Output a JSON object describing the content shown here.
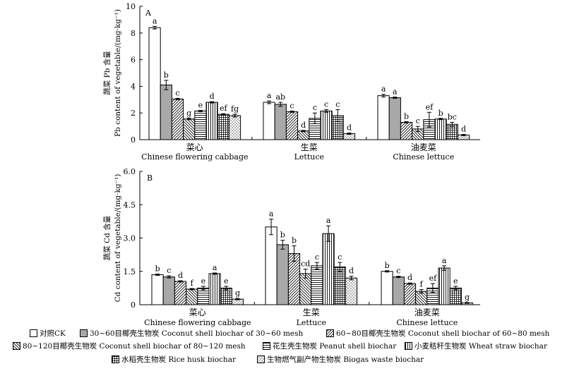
{
  "chart_data": [
    {
      "type": "bar",
      "panel_label": "A",
      "ylabel_cn": "蔬菜 Pb 含量",
      "ylabel_en": "Pb content of vegetable/(mg·kg⁻¹)",
      "ylim": [
        0,
        10
      ],
      "yticks": [
        0,
        2,
        4,
        6,
        8,
        10
      ],
      "categories": [
        {
          "cn": "菜心",
          "en": "Chinese flowering cabbage"
        },
        {
          "cn": "生菜",
          "en": "Lettuce"
        },
        {
          "cn": "油麦菜",
          "en": "Chinese lettuce"
        }
      ],
      "series": [
        {
          "name": "对照CK",
          "values": [
            8.4,
            2.8,
            3.3
          ],
          "errors": [
            0.1,
            0.1,
            0.1
          ],
          "letters": [
            "a",
            "a",
            "a"
          ]
        },
        {
          "name": "30~60目椰壳生物炭 Coconut shell biochar of 30~60 mesh",
          "values": [
            4.1,
            2.65,
            3.15
          ],
          "errors": [
            0.35,
            0.15,
            0.05
          ],
          "letters": [
            "b",
            "ab",
            "a"
          ]
        },
        {
          "name": "60~80目椰壳生物炭 Coconut shell biochar of 60~80 mesh",
          "values": [
            3.05,
            2.1,
            1.3
          ],
          "errors": [
            0.05,
            0.05,
            0.05
          ],
          "letters": [
            "c",
            "c",
            "b"
          ]
        },
        {
          "name": "80~120目椰壳生物炭 Coconut shell biochar of 80~120 mesh",
          "values": [
            1.55,
            0.65,
            0.8
          ],
          "errors": [
            0.05,
            0.05,
            0.2
          ],
          "letters": [
            "g",
            "d",
            "c"
          ]
        },
        {
          "name": "花生壳生物炭 Peanut shell biochar",
          "values": [
            2.15,
            1.6,
            1.5
          ],
          "errors": [
            0.05,
            0.4,
            0.55
          ],
          "letters": [
            "e",
            "c",
            "ef"
          ]
        },
        {
          "name": "小麦秸秆生物炭 Wheat straw biochar",
          "values": [
            2.8,
            2.15,
            1.55
          ],
          "errors": [
            0.05,
            0.1,
            0.05
          ],
          "letters": [
            "d",
            "c",
            "b"
          ]
        },
        {
          "name": "水稻壳生物炭 Rice husk biochar",
          "values": [
            1.9,
            1.8,
            1.15
          ],
          "errors": [
            0.05,
            0.45,
            0.15
          ],
          "letters": [
            "ef",
            "c",
            "bc"
          ]
        },
        {
          "name": "生物燃气副产物生物炭 Biogas waste biochar",
          "values": [
            1.8,
            0.45,
            0.35
          ],
          "errors": [
            0.1,
            0.05,
            0.05
          ],
          "letters": [
            "fg",
            "d",
            "d"
          ]
        }
      ]
    },
    {
      "type": "bar",
      "panel_label": "B",
      "ylabel_cn": "蔬菜 Cd 含量",
      "ylabel_en": "Cd content of vegetable/(mg·kg⁻¹)",
      "ylim": [
        0,
        6
      ],
      "yticks": [
        "0",
        "1.5",
        "3.0",
        "4.5",
        "6.0"
      ],
      "ytick_values": [
        0,
        1.5,
        3.0,
        4.5,
        6.0
      ],
      "categories": [
        {
          "cn": "菜心",
          "en": "Chinese flowering cabbage"
        },
        {
          "cn": "生菜",
          "en": "Lettuce"
        },
        {
          "cn": "油麦菜",
          "en": "Chinese lettuce"
        }
      ],
      "series": [
        {
          "name": "对照CK",
          "values": [
            1.35,
            3.5,
            1.5
          ],
          "errors": [
            0.03,
            0.35,
            0.03
          ],
          "letters": [
            "b",
            "a",
            "b"
          ]
        },
        {
          "name": "30~60目椰壳生物炭 Coconut shell biochar of 30~60 mesh",
          "values": [
            1.25,
            2.7,
            1.25
          ],
          "errors": [
            0.05,
            0.2,
            0.03
          ],
          "letters": [
            "c",
            "b",
            "c"
          ]
        },
        {
          "name": "60~80目椰壳生物炭 Coconut shell biochar of 60~80 mesh",
          "values": [
            1.05,
            2.3,
            0.95
          ],
          "errors": [
            0.03,
            0.35,
            0.03
          ],
          "letters": [
            "d",
            "b",
            "d"
          ]
        },
        {
          "name": "80~120目椰壳生物炭 Coconut shell biochar of 80~120 mesh",
          "values": [
            0.7,
            1.4,
            0.6
          ],
          "errors": [
            0.03,
            0.2,
            0.08
          ],
          "letters": [
            "f",
            "cd",
            "f"
          ]
        },
        {
          "name": "花生壳生物炭 Peanut shell biochar",
          "values": [
            0.75,
            1.75,
            0.75
          ],
          "errors": [
            0.08,
            0.15,
            0.2
          ],
          "letters": [
            "e",
            "c",
            "ef"
          ]
        },
        {
          "name": "小麦秸秆生物炭 Wheat straw biochar",
          "values": [
            1.4,
            3.2,
            1.65
          ],
          "errors": [
            0.03,
            0.35,
            0.1
          ],
          "letters": [
            "a",
            "a",
            "a"
          ]
        },
        {
          "name": "水稻壳生物炭 Rice husk biochar",
          "values": [
            0.75,
            1.7,
            0.75
          ],
          "errors": [
            0.08,
            0.2,
            0.08
          ],
          "letters": [
            "e",
            "c",
            "e"
          ]
        },
        {
          "name": "生物燃气副产物生物炭 Biogas waste biochar",
          "values": [
            0.25,
            1.2,
            0.08
          ],
          "errors": [
            0.03,
            0.08,
            0.02
          ],
          "letters": [
            "g",
            "d",
            "g"
          ]
        }
      ]
    }
  ],
  "legend": [
    {
      "label": "对照CK",
      "pattern": "white"
    },
    {
      "label": "30~60目椰壳生物炭 Coconut shell biochar of 30~60 mesh",
      "pattern": "gray"
    },
    {
      "label": "60~80目椰壳生物炭 Coconut shell biochar of 60~80 mesh",
      "pattern": "diag-right"
    },
    {
      "label": "80~120目椰壳生物炭 Coconut shell biochar of 80~120 mesh",
      "pattern": "diag-left"
    },
    {
      "label": "花生壳生物炭 Peanut shell biochar",
      "pattern": "hlines"
    },
    {
      "label": "小麦秸秆生物炭 Wheat straw biochar",
      "pattern": "vlines"
    },
    {
      "label": "水稻壳生物炭 Rice husk biochar",
      "pattern": "grid"
    },
    {
      "label": "生物燃气副产物生物炭 Biogas waste biochar",
      "pattern": "dots"
    }
  ]
}
